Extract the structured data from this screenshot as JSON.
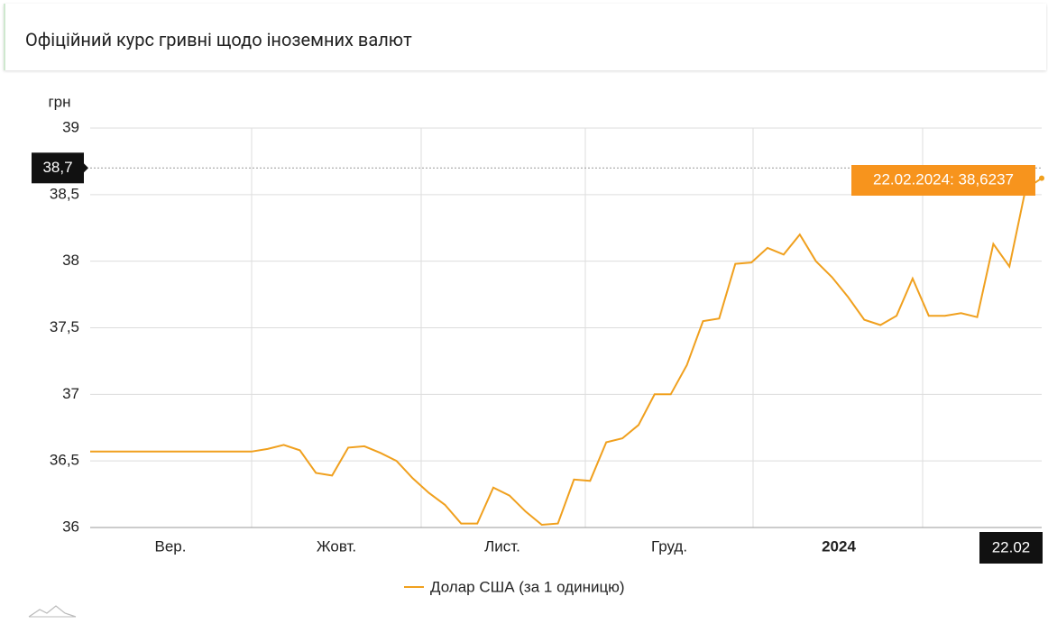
{
  "header": {
    "title": "Офіційний курс гривні щодо іноземних валют"
  },
  "chart_data": {
    "type": "line",
    "y_axis_label": "грн",
    "x_labels": [
      "Вер.",
      "Жовт.",
      "Лист.",
      "Груд.",
      "2024"
    ],
    "x_end_label": "22.02",
    "ylim": [
      36,
      39
    ],
    "yticks": [
      36,
      {
        "value": 36.5,
        "label": "36,5"
      },
      37,
      {
        "value": 37.5,
        "label": "37,5"
      },
      38,
      {
        "value": 38.5,
        "label": "38,5"
      },
      39
    ],
    "grid": true,
    "crosshair": {
      "value": 38.7,
      "label": "38,7"
    },
    "tooltip": "22.02.2024: 38,6237",
    "series": [
      {
        "name": "Долар США (за 1 одиницю)",
        "color": "#f0a01e",
        "values": [
          36.57,
          36.57,
          36.57,
          36.57,
          36.57,
          36.57,
          36.57,
          36.57,
          36.57,
          36.57,
          36.57,
          36.59,
          36.62,
          36.58,
          36.41,
          36.39,
          36.6,
          36.61,
          36.56,
          36.5,
          36.37,
          36.26,
          36.17,
          36.03,
          36.03,
          36.3,
          36.24,
          36.12,
          36.02,
          36.03,
          36.36,
          36.35,
          36.64,
          36.67,
          36.77,
          37.0,
          37.0,
          37.22,
          37.55,
          37.57,
          37.98,
          37.99,
          38.1,
          38.05,
          38.2,
          38.0,
          37.88,
          37.73,
          37.56,
          37.52,
          37.59,
          37.87,
          37.59,
          37.59,
          37.61,
          37.58,
          38.13,
          37.96,
          38.54,
          38.6237
        ]
      }
    ]
  }
}
